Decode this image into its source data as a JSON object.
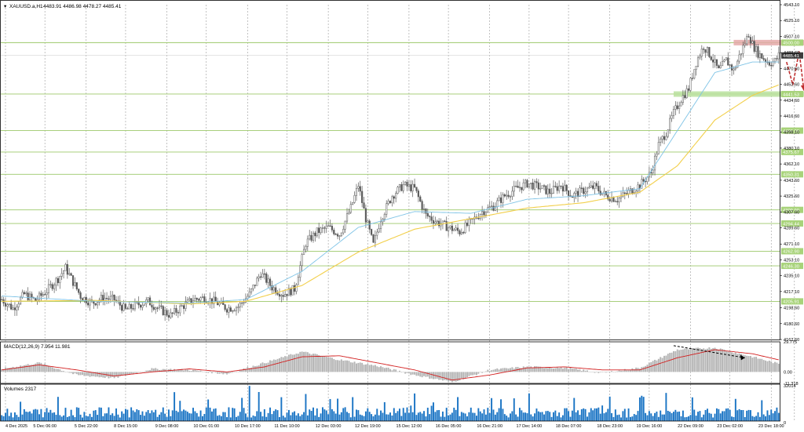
{
  "header": {
    "symbol": "XAUUSD.a,H1",
    "ohlc": "4483.91 4486.98 4478.27 4485.41"
  },
  "colors": {
    "background": "#ffffff",
    "grid": "#9a9a9a",
    "candle": "#5b5b5b",
    "level_line": "#9cc86a",
    "level_tag_bg": "#a8d37a",
    "ma_fast": "#7ec3e6",
    "ma_slow": "#f2cf4a",
    "macd_signal": "#d21e1e",
    "macd_hist": "#b4b4b4",
    "volume": "#1a74c4",
    "zone_resistance": "#e4a8a8",
    "zone_support": "#b8e09c",
    "forecast_arrow": "#c03030",
    "divergence_arrow": "#000000",
    "price_tag": "#3c3c3c"
  },
  "chart_data": [
    {
      "type": "candlestick",
      "panel": "price",
      "ylim": [
        4162.6,
        4543.1
      ],
      "yticks": [
        "4543.10",
        "4525.10",
        "4507.10",
        "4488.60",
        "4470.60",
        "4452.60",
        "4434.60",
        "4416.60",
        "4398.10",
        "4380.10",
        "4362.10",
        "4343.60",
        "4325.60",
        "4307.60",
        "4289.60",
        "4271.10",
        "4253.10",
        "4235.10",
        "4217.10",
        "4198.60",
        "4180.60",
        "4162.60"
      ],
      "x_labels": [
        "4 Dec 2025",
        "5 Dec 06:00",
        "5 Dec 22:00",
        "8 Dec 15:00",
        "9 Dec 08:00",
        "10 Dec 01:00",
        "10 Dec 17:00",
        "11 Dec 10:00",
        "12 Dec 03:00",
        "12 Dec 19:00",
        "15 Dec 12:00",
        "16 Dec 05:00",
        "16 Dec 21:00",
        "17 Dec 14:00",
        "18 Dec 07:00",
        "18 Dec 23:00",
        "19 Dec 16:00",
        "22 Dec 09:00",
        "23 Dec 02:00",
        "23 Dec 18:00"
      ],
      "close_path": [
        [
          0,
          4208
        ],
        [
          6,
          4198
        ],
        [
          12,
          4214
        ],
        [
          18,
          4207
        ],
        [
          24,
          4218
        ],
        [
          30,
          4232
        ],
        [
          34,
          4244
        ],
        [
          38,
          4228
        ],
        [
          42,
          4212
        ],
        [
          48,
          4204
        ],
        [
          54,
          4210
        ],
        [
          60,
          4208
        ],
        [
          66,
          4196
        ],
        [
          72,
          4202
        ],
        [
          78,
          4206
        ],
        [
          84,
          4197
        ],
        [
          90,
          4190
        ],
        [
          96,
          4200
        ],
        [
          102,
          4208
        ],
        [
          108,
          4210
        ],
        [
          114,
          4205
        ],
        [
          120,
          4198
        ],
        [
          126,
          4200
        ],
        [
          132,
          4214
        ],
        [
          138,
          4238
        ],
        [
          144,
          4222
        ],
        [
          150,
          4214
        ],
        [
          156,
          4220
        ],
        [
          162,
          4272
        ],
        [
          168,
          4285
        ],
        [
          174,
          4290
        ],
        [
          180,
          4282
        ],
        [
          186,
          4312
        ],
        [
          190,
          4338
        ],
        [
          194,
          4300
        ],
        [
          198,
          4270
        ],
        [
          202,
          4300
        ],
        [
          208,
          4326
        ],
        [
          214,
          4338
        ],
        [
          220,
          4334
        ],
        [
          226,
          4304
        ],
        [
          232,
          4296
        ],
        [
          238,
          4290
        ],
        [
          244,
          4285
        ],
        [
          250,
          4296
        ],
        [
          256,
          4308
        ],
        [
          262,
          4314
        ],
        [
          268,
          4326
        ],
        [
          274,
          4334
        ],
        [
          280,
          4340
        ],
        [
          286,
          4336
        ],
        [
          292,
          4330
        ],
        [
          298,
          4338
        ],
        [
          304,
          4326
        ],
        [
          310,
          4332
        ],
        [
          316,
          4336
        ],
        [
          322,
          4326
        ],
        [
          328,
          4322
        ],
        [
          334,
          4330
        ],
        [
          340,
          4338
        ],
        [
          346,
          4352
        ],
        [
          350,
          4384
        ],
        [
          354,
          4398
        ],
        [
          358,
          4420
        ],
        [
          362,
          4436
        ],
        [
          366,
          4448
        ],
        [
          370,
          4478
        ],
        [
          374,
          4496
        ],
        [
          378,
          4484
        ],
        [
          382,
          4468
        ],
        [
          386,
          4480
        ],
        [
          390,
          4468
        ],
        [
          394,
          4490
        ],
        [
          398,
          4510
        ],
        [
          400,
          4498
        ],
        [
          403,
          4488
        ],
        [
          406,
          4482
        ],
        [
          409,
          4477
        ],
        [
          412,
          4479
        ],
        [
          414,
          4485.41
        ]
      ],
      "ma_fast_path": [
        [
          0,
          4212
        ],
        [
          50,
          4206
        ],
        [
          100,
          4204
        ],
        [
          130,
          4208
        ],
        [
          160,
          4240
        ],
        [
          190,
          4290
        ],
        [
          220,
          4308
        ],
        [
          250,
          4306
        ],
        [
          280,
          4322
        ],
        [
          310,
          4326
        ],
        [
          340,
          4334
        ],
        [
          360,
          4400
        ],
        [
          380,
          4466
        ],
        [
          400,
          4478
        ],
        [
          414,
          4478
        ]
      ],
      "ma_slow_path": [
        [
          0,
          4206
        ],
        [
          50,
          4207
        ],
        [
          100,
          4203
        ],
        [
          130,
          4206
        ],
        [
          160,
          4224
        ],
        [
          190,
          4262
        ],
        [
          220,
          4288
        ],
        [
          250,
          4300
        ],
        [
          280,
          4312
        ],
        [
          310,
          4318
        ],
        [
          340,
          4330
        ],
        [
          360,
          4360
        ],
        [
          380,
          4412
        ],
        [
          400,
          4440
        ],
        [
          414,
          4452
        ]
      ],
      "levels": [
        {
          "value": 4500.0,
          "label": "4500.00"
        },
        {
          "value": 4441.53,
          "label": "4441.53"
        },
        {
          "value": 4400.0,
          "label": "4400.00"
        },
        {
          "value": 4375.67,
          "label": "4375.67"
        },
        {
          "value": 4350.31,
          "label": "4350.31"
        },
        {
          "value": 4309.9,
          "label": "4309.90"
        },
        {
          "value": 4294.44,
          "label": "4294.44"
        },
        {
          "value": 4262.9,
          "label": "4262.90"
        },
        {
          "value": 4246.3,
          "label": "4246.30"
        },
        {
          "value": 4205.91,
          "label": "4205.91"
        }
      ],
      "current_price": {
        "value": 4485.41,
        "label": "4485.41"
      }
    },
    {
      "type": "bar",
      "panel": "macd",
      "title": "MACD(12,26,9) 7.954 11.981",
      "ylim": [
        -11.318,
        29.775
      ],
      "yticks": [
        "29.775",
        "0.00",
        "-11.318"
      ],
      "waves": [
        [
          0,
          3
        ],
        [
          20,
          9
        ],
        [
          40,
          -3
        ],
        [
          60,
          -6
        ],
        [
          80,
          3
        ],
        [
          100,
          2
        ],
        [
          120,
          -2
        ],
        [
          140,
          9
        ],
        [
          160,
          20
        ],
        [
          180,
          12
        ],
        [
          200,
          6
        ],
        [
          220,
          -3
        ],
        [
          240,
          -10
        ],
        [
          260,
          2
        ],
        [
          280,
          5
        ],
        [
          300,
          4
        ],
        [
          320,
          -1
        ],
        [
          340,
          4
        ],
        [
          360,
          22
        ],
        [
          380,
          24
        ],
        [
          400,
          15
        ],
        [
          414,
          8
        ]
      ],
      "signal_waves": [
        [
          0,
          2
        ],
        [
          20,
          7
        ],
        [
          40,
          2
        ],
        [
          60,
          -4
        ],
        [
          80,
          0
        ],
        [
          100,
          3
        ],
        [
          120,
          0
        ],
        [
          140,
          5
        ],
        [
          160,
          15
        ],
        [
          180,
          16
        ],
        [
          200,
          9
        ],
        [
          220,
          2
        ],
        [
          240,
          -8
        ],
        [
          260,
          -3
        ],
        [
          280,
          4
        ],
        [
          300,
          5
        ],
        [
          320,
          2
        ],
        [
          340,
          2
        ],
        [
          360,
          14
        ],
        [
          380,
          22
        ],
        [
          400,
          18
        ],
        [
          414,
          12
        ]
      ]
    },
    {
      "type": "bar",
      "panel": "volume",
      "title": "Volumes 2317",
      "ylim": [
        0,
        32014
      ],
      "yticks": [
        "32014",
        "0"
      ]
    }
  ]
}
